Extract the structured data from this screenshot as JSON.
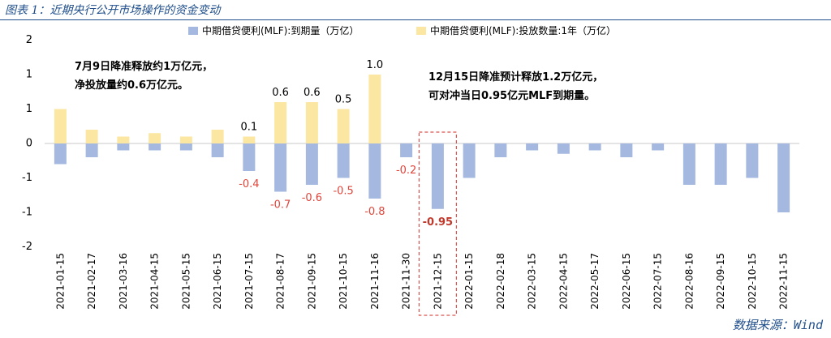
{
  "header": {
    "title": "图表 1：近期央行公开市场操作的资金变动"
  },
  "source": "数据来源：Wind",
  "colors": {
    "maturity": "#a5b8e0",
    "injection": "#fbe7a1",
    "negative_label": "#e0453b",
    "highlight": "#d9534f"
  },
  "chart_data": {
    "type": "bar",
    "categories": [
      "2021-01-15",
      "2021-02-17",
      "2021-03-16",
      "2021-04-15",
      "2021-05-15",
      "2021-06-15",
      "2021-07-15",
      "2021-08-17",
      "2021-09-15",
      "2021-10-15",
      "2021-11-16",
      "2021-11-30",
      "2021-12-15",
      "2022-01-15",
      "2022-02-18",
      "2022-03-15",
      "2022-04-15",
      "2022-05-17",
      "2022-06-15",
      "2022-07-15",
      "2022-08-16",
      "2022-09-15",
      "2022-10-15",
      "2022-11-15"
    ],
    "series": [
      {
        "name": "中期借贷便利(MLF):到期量（万亿）",
        "color": "#a5b8e0",
        "values": [
          -0.6,
          -0.4,
          -0.2,
          -0.2,
          -0.2,
          -0.4,
          -0.8,
          -1.4,
          -1.2,
          -1.0,
          -1.6,
          -0.4,
          -1.9,
          -1.0,
          -0.4,
          -0.2,
          -0.3,
          -0.2,
          -0.4,
          -0.2,
          -1.2,
          -1.2,
          -1.0,
          -2.0
        ]
      },
      {
        "name": "中期借贷便利(MLF):投放数量:1年（万亿）",
        "color": "#fbe7a1",
        "values": [
          1.0,
          0.4,
          0.2,
          0.3,
          0.2,
          0.4,
          0.2,
          1.2,
          1.2,
          1.0,
          2.0,
          0,
          0,
          0,
          0,
          0,
          0,
          0,
          0,
          0,
          0,
          0,
          0,
          0
        ]
      }
    ],
    "yticks": [
      "2",
      "1",
      "1",
      "0",
      "-1",
      "-1",
      "-2"
    ],
    "ylim": [
      -3,
      3
    ],
    "data_labels": [
      {
        "category": "2021-07-15",
        "text": "0.1",
        "kind": "pos"
      },
      {
        "category": "2021-08-17",
        "text": "0.6",
        "kind": "pos"
      },
      {
        "category": "2021-09-15",
        "text": "0.6",
        "kind": "pos"
      },
      {
        "category": "2021-10-15",
        "text": "0.5",
        "kind": "pos"
      },
      {
        "category": "2021-11-16",
        "text": "1.0",
        "kind": "pos"
      },
      {
        "category": "2021-07-15",
        "text": "-0.4",
        "kind": "neg"
      },
      {
        "category": "2021-08-17",
        "text": "-0.7",
        "kind": "neg"
      },
      {
        "category": "2021-09-15",
        "text": "-0.6",
        "kind": "neg"
      },
      {
        "category": "2021-10-15",
        "text": "-0.5",
        "kind": "neg"
      },
      {
        "category": "2021-11-16",
        "text": "-0.8",
        "kind": "neg"
      },
      {
        "category": "2021-11-30",
        "text": "-0.2",
        "kind": "neg"
      },
      {
        "category": "2021-12-15",
        "text": "-0.95",
        "kind": "highlight"
      }
    ],
    "annotations": [
      {
        "lines": [
          "7月9日降准释放约1万亿元，",
          "净投放量约0.6万亿元。"
        ]
      },
      {
        "lines": [
          "12月15日降准预计释放1.2万亿元，",
          "可对冲当日0.95亿元MLF到期量。"
        ]
      }
    ],
    "highlight_category": "2021-12-15",
    "grid": false,
    "legend_position": "top-center"
  }
}
